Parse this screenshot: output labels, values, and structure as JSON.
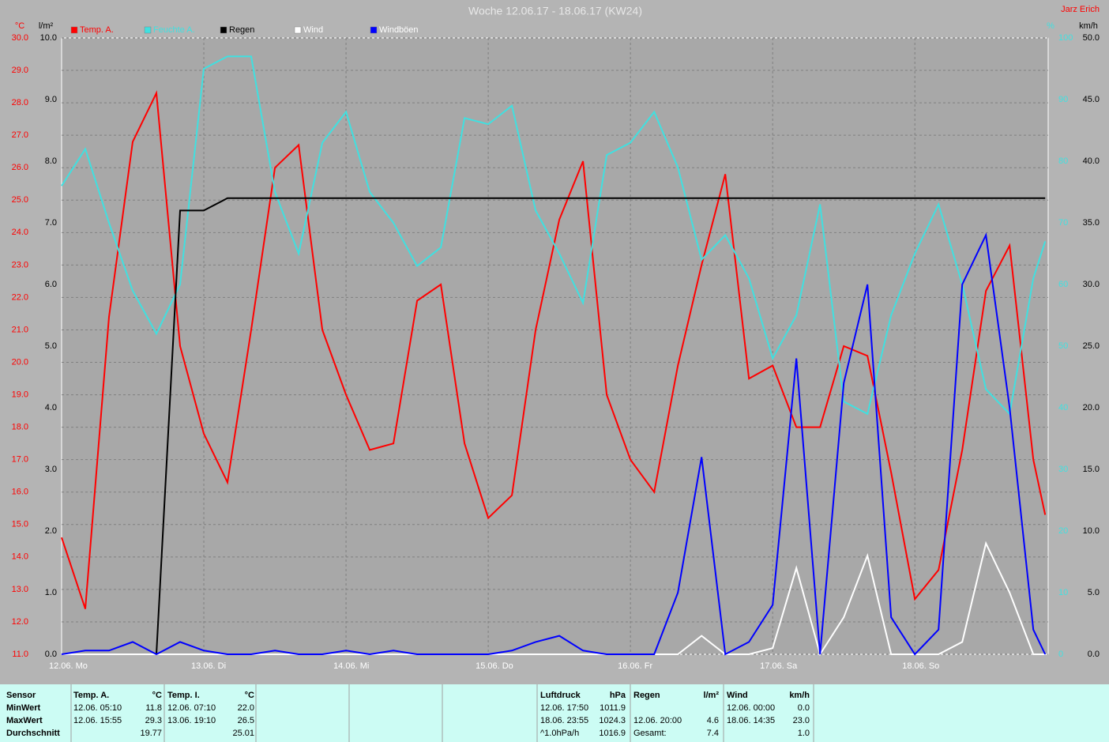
{
  "chart_data": {
    "type": "line",
    "title": "Woche 12.06.17 - 18.06.17 (KW24)",
    "author": "Jarz Erich",
    "grid": true,
    "x": [
      0,
      4,
      8,
      12,
      16,
      20,
      24,
      28,
      32,
      36,
      40,
      44,
      48,
      52,
      56,
      60,
      64,
      68,
      72,
      76,
      80,
      84,
      88,
      92,
      96,
      100,
      104,
      108,
      112,
      116,
      120,
      124,
      128,
      132,
      136,
      140,
      144,
      148,
      152,
      156,
      160,
      164,
      166
    ],
    "xlim": [
      0,
      166.5
    ],
    "xticks": [
      {
        "value": 0,
        "label": "12.06.  Mo"
      },
      {
        "value": 24,
        "label": "13.06.  Di"
      },
      {
        "value": 48,
        "label": "14.06.  Mi"
      },
      {
        "value": 72,
        "label": "15.06.  Do"
      },
      {
        "value": 96,
        "label": "16.06.  Fr"
      },
      {
        "value": 120,
        "label": "17.06.  Sa"
      },
      {
        "value": 144,
        "label": "18.06.  So"
      }
    ],
    "axes": {
      "temp": {
        "label": "°C",
        "lim": [
          11,
          30
        ],
        "ticks": [
          {
            "value": 11,
            "label": "11.0"
          },
          {
            "value": 12,
            "label": "12.0"
          },
          {
            "value": 13,
            "label": "13.0"
          },
          {
            "value": 14,
            "label": "14.0"
          },
          {
            "value": 15,
            "label": "15.0"
          },
          {
            "value": 16,
            "label": "16.0"
          },
          {
            "value": 17,
            "label": "17.0"
          },
          {
            "value": 18,
            "label": "18.0"
          },
          {
            "value": 19,
            "label": "19.0"
          },
          {
            "value": 20,
            "label": "20.0"
          },
          {
            "value": 21,
            "label": "21.0"
          },
          {
            "value": 22,
            "label": "22.0"
          },
          {
            "value": 23,
            "label": "23.0"
          },
          {
            "value": 24,
            "label": "24.0"
          },
          {
            "value": 25,
            "label": "25.0"
          },
          {
            "value": 26,
            "label": "26.0"
          },
          {
            "value": 27,
            "label": "27.0"
          },
          {
            "value": 28,
            "label": "28.0"
          },
          {
            "value": 29,
            "label": "29.0"
          },
          {
            "value": 30,
            "label": "30.0"
          }
        ]
      },
      "rain": {
        "label": "l/m²",
        "lim": [
          0,
          10
        ],
        "ticks": [
          {
            "value": 0,
            "label": "0.0"
          },
          {
            "value": 1,
            "label": "1.0"
          },
          {
            "value": 2,
            "label": "2.0"
          },
          {
            "value": 3,
            "label": "3.0"
          },
          {
            "value": 4,
            "label": "4.0"
          },
          {
            "value": 5,
            "label": "5.0"
          },
          {
            "value": 6,
            "label": "6.0"
          },
          {
            "value": 7,
            "label": "7.0"
          },
          {
            "value": 8,
            "label": "8.0"
          },
          {
            "value": 9,
            "label": "9.0"
          },
          {
            "value": 10,
            "label": "10.0"
          }
        ]
      },
      "hum": {
        "label": "%",
        "lim": [
          0,
          100
        ],
        "ticks": [
          0,
          10,
          20,
          30,
          40,
          50,
          60,
          70,
          80,
          90,
          100
        ]
      },
      "wind": {
        "label": "km/h",
        "lim": [
          0,
          50
        ],
        "ticks": [
          {
            "value": 0,
            "label": "0.0"
          },
          {
            "value": 5,
            "label": "5.0"
          },
          {
            "value": 10,
            "label": "10.0"
          },
          {
            "value": 15,
            "label": "15.0"
          },
          {
            "value": 20,
            "label": "20.0"
          },
          {
            "value": 25,
            "label": "25.0"
          },
          {
            "value": 30,
            "label": "30.0"
          },
          {
            "value": 35,
            "label": "35.0"
          },
          {
            "value": 40,
            "label": "40.0"
          },
          {
            "value": 45,
            "label": "45.0"
          },
          {
            "value": 50,
            "label": "50.0"
          }
        ]
      }
    },
    "series": [
      {
        "name": "Temp. A.",
        "color": "#ff0000",
        "axis": "temp",
        "values": [
          14.6,
          12.4,
          21.4,
          26.8,
          28.3,
          20.5,
          17.8,
          16.3,
          21,
          26,
          26.7,
          21,
          19,
          17.3,
          17.5,
          21.9,
          22.4,
          17.5,
          15.2,
          15.9,
          21,
          24.4,
          26.2,
          19,
          17,
          16,
          19.9,
          23,
          25.8,
          19.5,
          19.9,
          18,
          18,
          20.5,
          20.2,
          16.6,
          12.7,
          13.6,
          17.3,
          22.2,
          23.6,
          17,
          15.3
        ]
      },
      {
        "name": "Feuchte A.",
        "color": "#40e0e0",
        "axis": "hum",
        "values": [
          76,
          82,
          70,
          59,
          52,
          60,
          95,
          97,
          97,
          75,
          65,
          83,
          88,
          75,
          70,
          63,
          66,
          87,
          86,
          89,
          72,
          65,
          57,
          81,
          83,
          88,
          79,
          64,
          68,
          61,
          48,
          55,
          73,
          41,
          39,
          55,
          65,
          73,
          60,
          43,
          39,
          61,
          67
        ]
      },
      {
        "name": "Regen",
        "color": "#000000",
        "axis": "rain",
        "values": [
          0,
          0,
          0,
          0,
          0,
          7.2,
          7.2,
          7.4,
          7.4,
          7.4,
          7.4,
          7.4,
          7.4,
          7.4,
          7.4,
          7.4,
          7.4,
          7.4,
          7.4,
          7.4,
          7.4,
          7.4,
          7.4,
          7.4,
          7.4,
          7.4,
          7.4,
          7.4,
          7.4,
          7.4,
          7.4,
          7.4,
          7.4,
          7.4,
          7.4,
          7.4,
          7.4,
          7.4,
          7.4,
          7.4,
          7.4,
          7.4,
          7.4
        ]
      },
      {
        "name": "Wind",
        "color": "#ffffff",
        "axis": "wind",
        "values": [
          0,
          0,
          0,
          0,
          0,
          0,
          0,
          0,
          0,
          0,
          0,
          0,
          0,
          0,
          0,
          0,
          0,
          0,
          0,
          0,
          0,
          0,
          0,
          0,
          0,
          0,
          0,
          1.5,
          0,
          0,
          0.5,
          7,
          0,
          3,
          8,
          0,
          0,
          0,
          1,
          9,
          5,
          0,
          0
        ]
      },
      {
        "name": "Windböen",
        "color": "#0000ff",
        "axis": "wind",
        "values": [
          0,
          0.3,
          0.3,
          1,
          0,
          1,
          0.3,
          0,
          0,
          0.3,
          0,
          0,
          0.3,
          0,
          0.3,
          0,
          0,
          0,
          0,
          0.3,
          1,
          1.5,
          0.3,
          0,
          0,
          0,
          5,
          16,
          0,
          1,
          4,
          24,
          0,
          22,
          30,
          3,
          0,
          2,
          30,
          34,
          20,
          2,
          0
        ]
      }
    ]
  },
  "table": {
    "row_labels": [
      "Sensor",
      "MinWert",
      "MaxWert",
      "Durchschnitt"
    ],
    "blocks": [
      {
        "header": "Temp. A.",
        "unit": "°C",
        "rows": [
          [
            "12.06.  05:10",
            "11.8"
          ],
          [
            "12.06.  15:55",
            "29.3"
          ],
          [
            "19.77"
          ]
        ]
      },
      {
        "header": "Temp. I.",
        "unit": "°C",
        "rows": [
          [
            "12.06.  07:10",
            "22.0"
          ],
          [
            "13.06.  19:10",
            "26.5"
          ],
          [
            "25.01"
          ]
        ]
      },
      {
        "header": "Luftdruck",
        "unit": "hPa",
        "rows": [
          [
            "12.06.  17:50",
            "1011.9"
          ],
          [
            "18.06.  23:55",
            "1024.3"
          ],
          [
            "^1.0hPa/h",
            "1016.9"
          ]
        ]
      },
      {
        "header": "Regen",
        "unit": "l/m²",
        "rows": [
          [],
          [
            "12.06.  20:00",
            "4.6"
          ],
          [
            "Gesamt:",
            "7.4"
          ]
        ]
      },
      {
        "header": "Wind",
        "unit": "km/h",
        "rows": [
          [
            "12.06.  00:00",
            "0.0"
          ],
          [
            "18.06.  14:35",
            "23.0"
          ],
          [
            "1.0"
          ]
        ]
      }
    ]
  }
}
